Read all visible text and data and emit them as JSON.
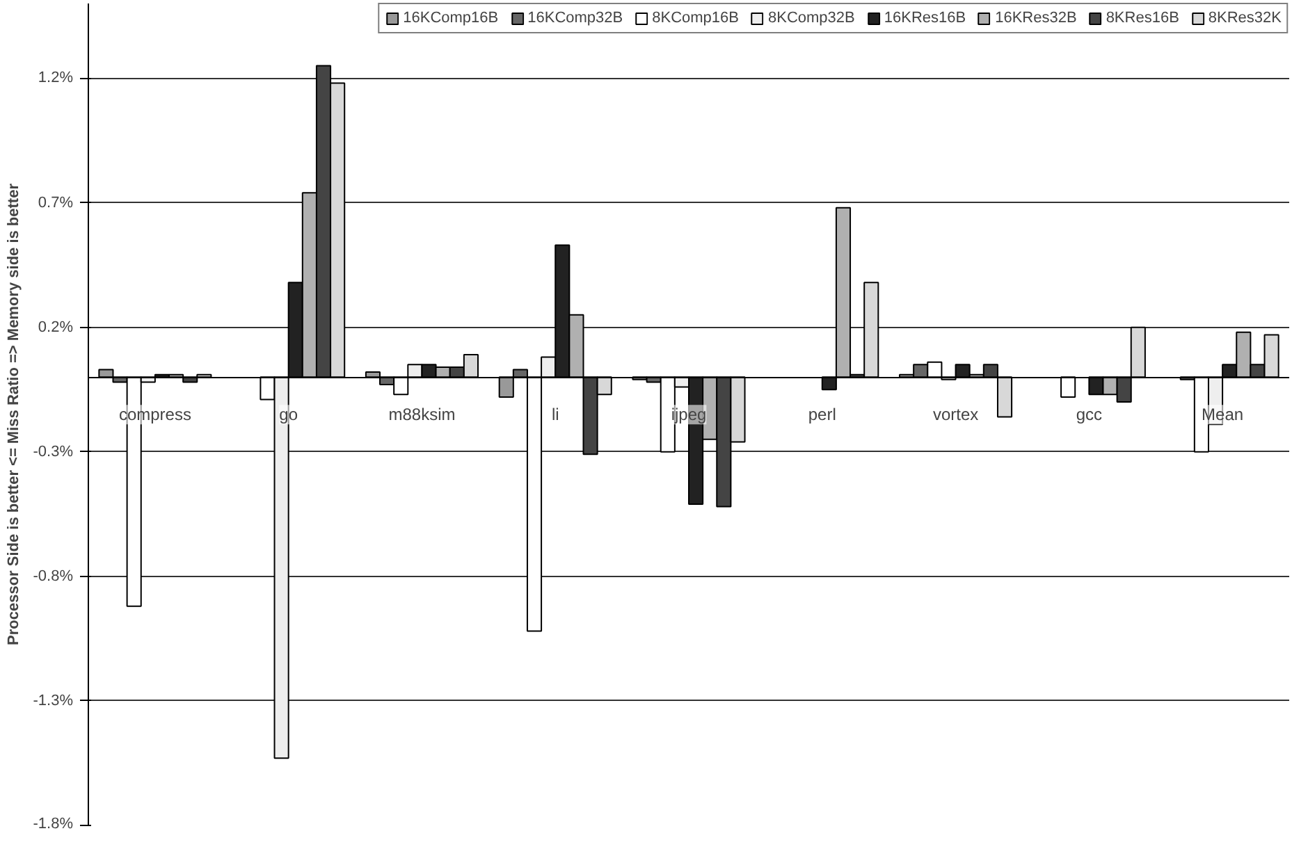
{
  "chart_data": {
    "type": "bar",
    "ylabel": "Processor Side is better <= Miss Ratio => Memory side is better",
    "categories": [
      "compress",
      "go",
      "m88ksim",
      "li",
      "ijpeg",
      "perl",
      "vortex",
      "gcc",
      "Mean"
    ],
    "series": [
      {
        "name": "16KComp16B",
        "color": "#999999",
        "values": [
          0.03,
          null,
          0.02,
          -0.08,
          -0.01,
          null,
          0.01,
          null,
          null
        ]
      },
      {
        "name": "16KComp32B",
        "color": "#666666",
        "values": [
          -0.02,
          null,
          -0.03,
          0.03,
          -0.02,
          null,
          0.05,
          null,
          -0.01
        ]
      },
      {
        "name": "8KComp16B",
        "color": "#ffffff",
        "values": [
          -0.92,
          -0.09,
          -0.07,
          -1.02,
          -0.3,
          null,
          0.06,
          -0.08,
          -0.3
        ]
      },
      {
        "name": "8KComp32B",
        "color": "#eeeeee",
        "values": [
          -0.02,
          -1.53,
          0.05,
          0.08,
          -0.04,
          null,
          -0.01,
          null,
          -0.19
        ]
      },
      {
        "name": "16KRes16B",
        "color": "#222222",
        "values": [
          0.01,
          0.38,
          0.05,
          0.53,
          -0.51,
          -0.05,
          0.05,
          -0.07,
          0.05
        ]
      },
      {
        "name": "16KRes32B",
        "color": "#b0b0b0",
        "values": [
          0.01,
          0.74,
          0.04,
          0.25,
          -0.25,
          0.68,
          0.01,
          -0.07,
          0.18
        ]
      },
      {
        "name": "8KRes16B",
        "color": "#444444",
        "values": [
          -0.02,
          1.25,
          0.04,
          -0.31,
          -0.52,
          0.01,
          0.05,
          -0.1,
          0.05
        ]
      },
      {
        "name": "8KRes32K",
        "color": "#d8d8d8",
        "values": [
          0.01,
          1.18,
          0.09,
          -0.07,
          -0.26,
          0.38,
          -0.16,
          0.2,
          0.17
        ]
      }
    ],
    "ylim": [
      -1.8,
      1.5
    ],
    "yticks": [
      {
        "value": -1.8,
        "label": "-1.8%"
      },
      {
        "value": -1.3,
        "label": "-1.3%"
      },
      {
        "value": -0.8,
        "label": "-0.8%"
      },
      {
        "value": -0.3,
        "label": "-0.3%"
      },
      {
        "value": 0.2,
        "label": "0.2%"
      },
      {
        "value": 0.7,
        "label": "0.7%"
      },
      {
        "value": 1.2,
        "label": "1.2%"
      }
    ],
    "grid": "y",
    "legend": "top"
  }
}
